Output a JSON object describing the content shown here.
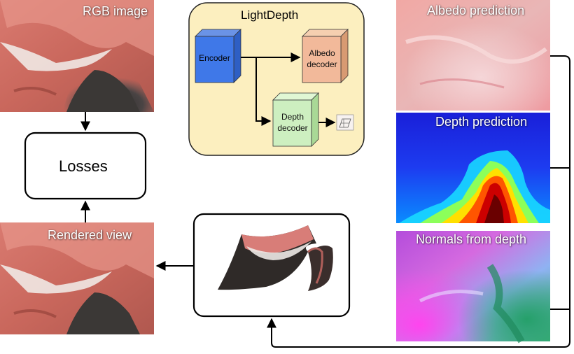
{
  "panels": {
    "rgb_label": "RGB image",
    "rendered_label": "Rendered view",
    "albedo_label": "Albedo prediction",
    "depth_label": "Depth prediction",
    "normals_label": "Normals from depth"
  },
  "network": {
    "title": "LightDepth",
    "encoder": "Encoder",
    "albedo_decoder": "Albedo decoder",
    "depth_decoder": "Depth decoder"
  },
  "losses": "Losses"
}
